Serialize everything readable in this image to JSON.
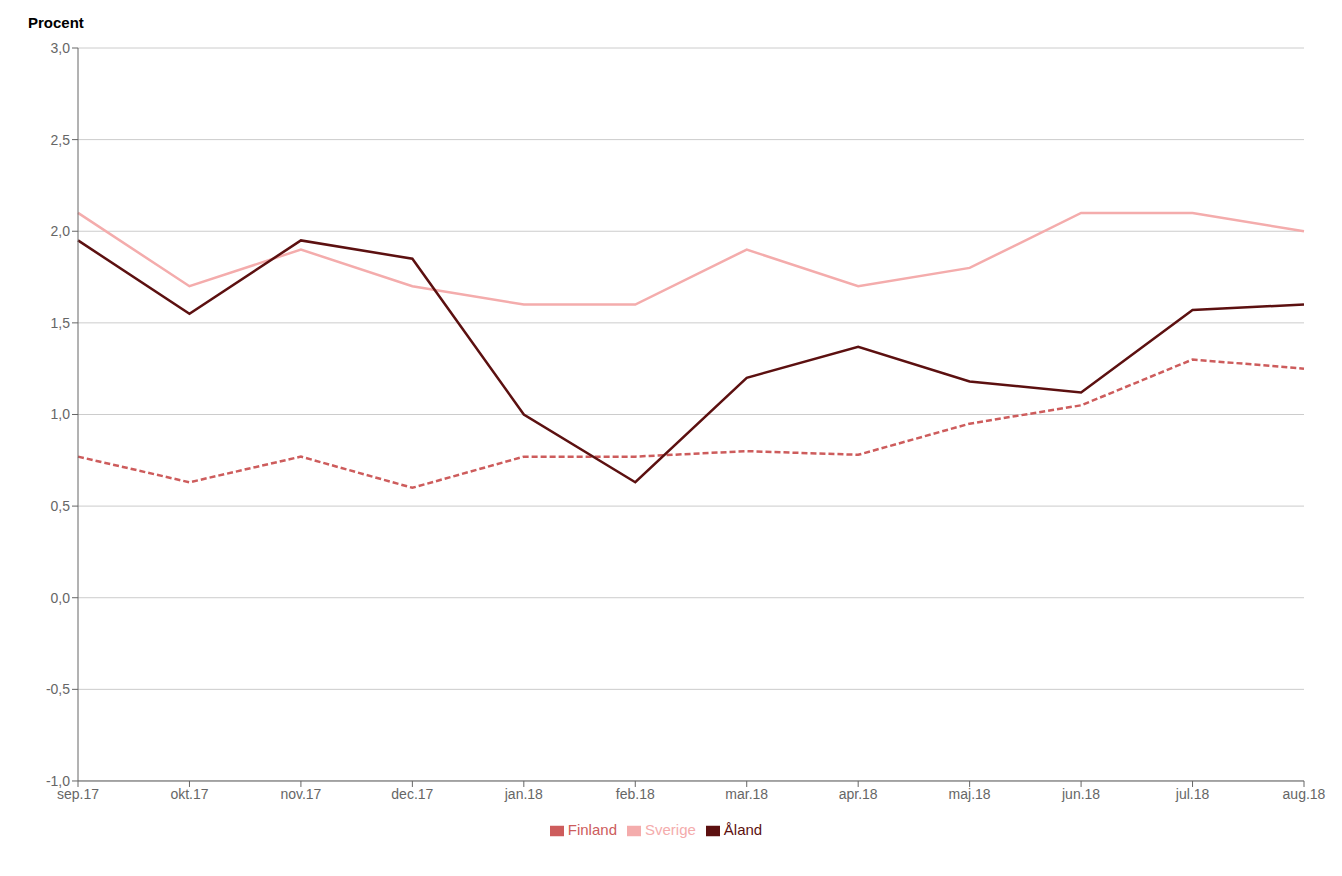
{
  "chart_data": {
    "type": "line",
    "ylabel": "Procent",
    "categories": [
      "sep.17",
      "okt.17",
      "nov.17",
      "dec.17",
      "jan.18",
      "feb.18",
      "mar.18",
      "apr.18",
      "maj.18",
      "jun.18",
      "jul.18",
      "aug.18"
    ],
    "series": [
      {
        "name": "Sverige",
        "color": "#F4ACAC",
        "line_style": "solid",
        "values": [
          2.1,
          1.7,
          1.9,
          1.7,
          1.6,
          1.6,
          1.9,
          1.7,
          1.8,
          2.1,
          2.1,
          2.0
        ]
      },
      {
        "name": "Finland",
        "color": "#CD5C5C",
        "line_style": "dashed",
        "values": [
          0.77,
          0.63,
          0.77,
          0.6,
          0.77,
          0.77,
          0.8,
          0.78,
          0.95,
          1.05,
          1.3,
          1.25
        ]
      },
      {
        "name": "Åland",
        "color": "#5C1010",
        "line_style": "solid",
        "values": [
          1.95,
          1.55,
          1.95,
          1.85,
          1.0,
          0.63,
          1.2,
          1.37,
          1.18,
          1.12,
          1.57,
          1.6
        ]
      }
    ],
    "ylim": [
      -1.0,
      3.0
    ],
    "yticks": [
      {
        "value": -1.0,
        "label": "-1,0"
      },
      {
        "value": -0.5,
        "label": "-0,5"
      },
      {
        "value": 0.0,
        "label": "0,0"
      },
      {
        "value": 0.5,
        "label": "0,5"
      },
      {
        "value": 1.0,
        "label": "1,0"
      },
      {
        "value": 1.5,
        "label": "1,5"
      },
      {
        "value": 2.0,
        "label": "2,0"
      },
      {
        "value": 2.5,
        "label": "2,5"
      },
      {
        "value": 3.0,
        "label": "3,0"
      }
    ],
    "grid": true,
    "legend": "bottom"
  }
}
